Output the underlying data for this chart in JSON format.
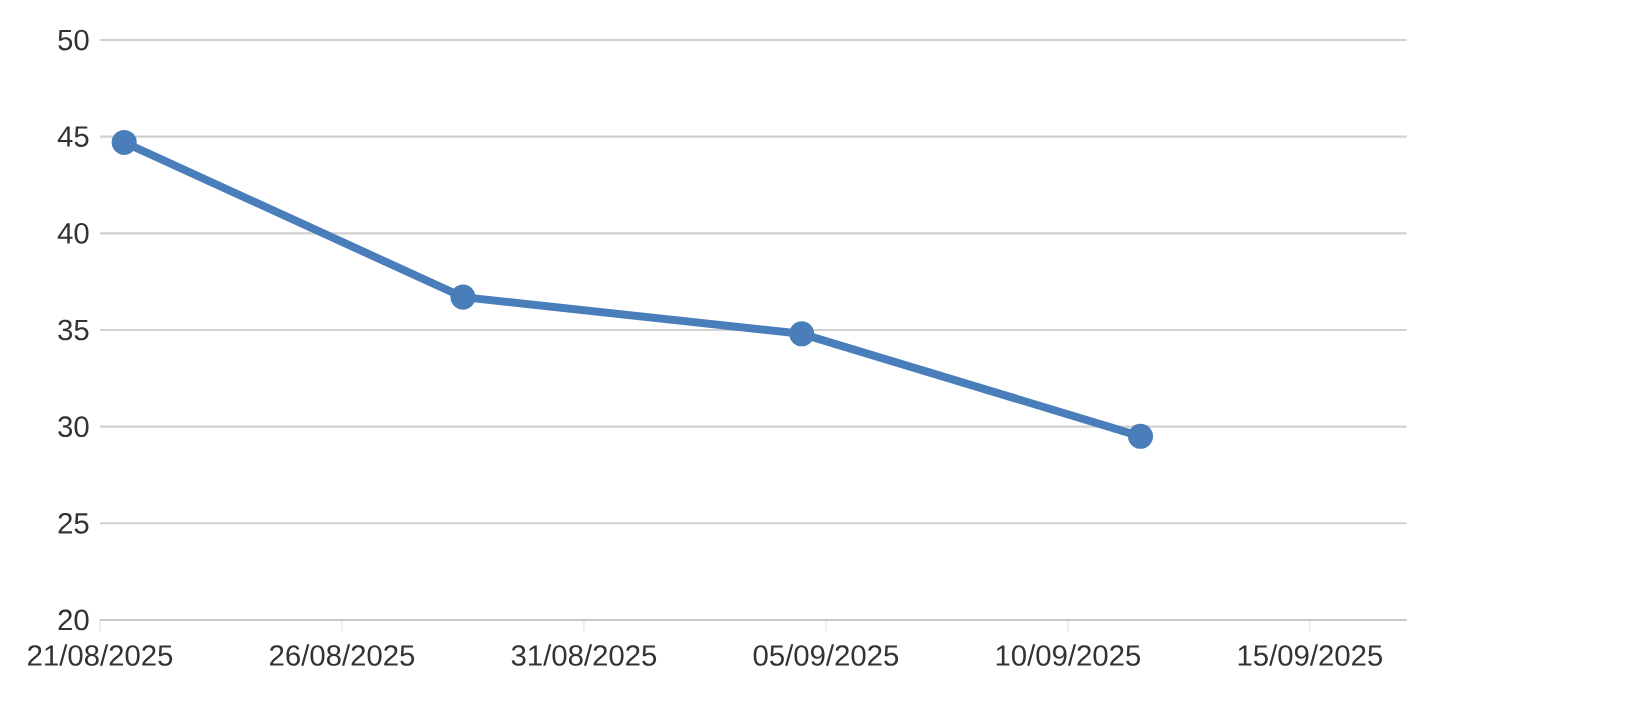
{
  "chart_data": {
    "type": "line",
    "x": [
      "2025-08-21T12:00",
      "2025-08-28T12:00",
      "2025-09-04T12:00",
      "2025-09-11T12:00"
    ],
    "series": [
      {
        "color": "#4a7ebb",
        "values": [
          44.7,
          36.7,
          34.8,
          29.5
        ]
      }
    ],
    "xlim": [
      "2025-08-21",
      "2025-09-17"
    ],
    "xticks": [
      {
        "value": "2025-08-21",
        "label": "21/08/2025"
      },
      {
        "value": "2025-08-26",
        "label": "26/08/2025"
      },
      {
        "value": "2025-08-31",
        "label": "31/08/2025"
      },
      {
        "value": "2025-09-05",
        "label": "05/09/2025"
      },
      {
        "value": "2025-09-10",
        "label": "10/09/2025"
      },
      {
        "value": "2025-09-15",
        "label": "15/09/2025"
      }
    ],
    "ylim": [
      20,
      50
    ],
    "yticks": [
      20,
      25,
      30,
      35,
      40,
      45,
      50
    ],
    "grid": "y",
    "marker": "circle",
    "line_style": "solid"
  }
}
